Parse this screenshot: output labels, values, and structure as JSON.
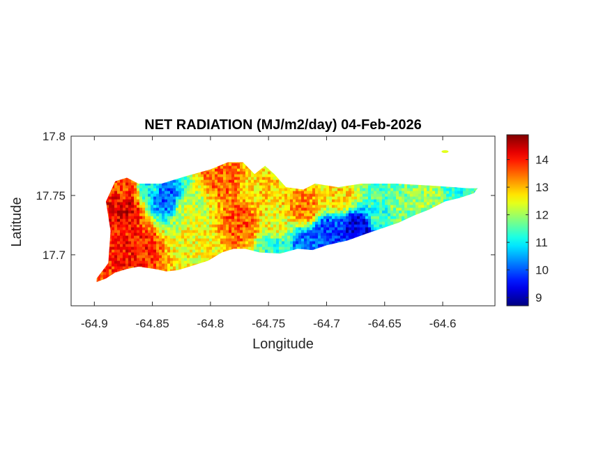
{
  "chart_data": {
    "type": "heatmap",
    "title": "NET RADIATION (MJ/m2/day) 04-Feb-2026",
    "xlabel": "Longitude",
    "ylabel": "Latitude",
    "xlim": [
      -64.92,
      -64.555
    ],
    "ylim": [
      17.657,
      17.8
    ],
    "xticks": [
      -64.9,
      -64.85,
      -64.8,
      -64.75,
      -64.7,
      -64.65,
      -64.6
    ],
    "xtick_labels": [
      "-64.9",
      "-64.85",
      "-64.8",
      "-64.75",
      "-64.7",
      "-64.65",
      "-64.6"
    ],
    "yticks": [
      17.7,
      17.75,
      17.8
    ],
    "ytick_labels": [
      "17.7",
      "17.75",
      "17.8"
    ],
    "colorbar": {
      "colormap": "jet",
      "range": [
        8.7,
        14.9
      ],
      "ticks": [
        9,
        10,
        11,
        12,
        13,
        14
      ],
      "tick_labels": [
        "9",
        "10",
        "11",
        "12",
        "13",
        "14"
      ]
    },
    "island_outline": [
      [
        -64.898,
        17.68
      ],
      [
        -64.888,
        17.693
      ],
      [
        -64.886,
        17.72
      ],
      [
        -64.89,
        17.745
      ],
      [
        -64.882,
        17.762
      ],
      [
        -64.872,
        17.765
      ],
      [
        -64.862,
        17.76
      ],
      [
        -64.842,
        17.76
      ],
      [
        -64.822,
        17.766
      ],
      [
        -64.8,
        17.772
      ],
      [
        -64.785,
        17.778
      ],
      [
        -64.772,
        17.778
      ],
      [
        -64.762,
        17.768
      ],
      [
        -64.753,
        17.775
      ],
      [
        -64.745,
        17.768
      ],
      [
        -64.735,
        17.757
      ],
      [
        -64.72,
        17.755
      ],
      [
        -64.71,
        17.76
      ],
      [
        -64.69,
        17.757
      ],
      [
        -64.67,
        17.76
      ],
      [
        -64.655,
        17.76
      ],
      [
        -64.64,
        17.76
      ],
      [
        -64.622,
        17.759
      ],
      [
        -64.605,
        17.758
      ],
      [
        -64.59,
        17.757
      ],
      [
        -64.578,
        17.756
      ],
      [
        -64.57,
        17.756
      ],
      [
        -64.573,
        17.752
      ],
      [
        -64.585,
        17.748
      ],
      [
        -64.598,
        17.745
      ],
      [
        -64.612,
        17.738
      ],
      [
        -64.625,
        17.733
      ],
      [
        -64.638,
        17.727
      ],
      [
        -64.65,
        17.723
      ],
      [
        -64.665,
        17.718
      ],
      [
        -64.682,
        17.712
      ],
      [
        -64.7,
        17.708
      ],
      [
        -64.712,
        17.704
      ],
      [
        -64.725,
        17.705
      ],
      [
        -64.74,
        17.701
      ],
      [
        -64.758,
        17.702
      ],
      [
        -64.77,
        17.705
      ],
      [
        -64.78,
        17.705
      ],
      [
        -64.79,
        17.702
      ],
      [
        -64.802,
        17.695
      ],
      [
        -64.818,
        17.69
      ],
      [
        -64.828,
        17.687
      ],
      [
        -64.838,
        17.686
      ],
      [
        -64.848,
        17.688
      ],
      [
        -64.862,
        17.69
      ],
      [
        -64.872,
        17.688
      ],
      [
        -64.882,
        17.685
      ],
      [
        -64.89,
        17.68
      ],
      [
        -64.898,
        17.677
      ]
    ],
    "islet": [
      -64.598,
      17.787
    ],
    "field_centers": [
      {
        "lon": -64.875,
        "lat": 17.74,
        "value": 14.3
      },
      {
        "lon": -64.865,
        "lat": 17.71,
        "value": 14.0
      },
      {
        "lon": -64.872,
        "lat": 17.755,
        "value": 13.8
      },
      {
        "lon": -64.84,
        "lat": 17.749,
        "value": 10.0
      },
      {
        "lon": -64.855,
        "lat": 17.758,
        "value": 11.0
      },
      {
        "lon": -64.82,
        "lat": 17.74,
        "value": 12.2
      },
      {
        "lon": -64.815,
        "lat": 17.715,
        "value": 12.5
      },
      {
        "lon": -64.775,
        "lat": 17.727,
        "value": 13.6
      },
      {
        "lon": -64.79,
        "lat": 17.765,
        "value": 13.5
      },
      {
        "lon": -64.76,
        "lat": 17.76,
        "value": 12.8
      },
      {
        "lon": -64.745,
        "lat": 17.725,
        "value": 12.5
      },
      {
        "lon": -64.72,
        "lat": 17.74,
        "value": 13.3
      },
      {
        "lon": -64.7,
        "lat": 17.72,
        "value": 9.8
      },
      {
        "lon": -64.675,
        "lat": 17.724,
        "value": 9.3
      },
      {
        "lon": -64.72,
        "lat": 17.71,
        "value": 10.2
      },
      {
        "lon": -64.745,
        "lat": 17.708,
        "value": 11.3
      },
      {
        "lon": -64.655,
        "lat": 17.735,
        "value": 11.3
      },
      {
        "lon": -64.64,
        "lat": 17.745,
        "value": 11.8
      },
      {
        "lon": -64.65,
        "lat": 17.755,
        "value": 11.5
      },
      {
        "lon": -64.615,
        "lat": 17.75,
        "value": 12.0
      },
      {
        "lon": -64.585,
        "lat": 17.752,
        "value": 11.2
      },
      {
        "lon": -64.69,
        "lat": 17.75,
        "value": 12.8
      }
    ]
  }
}
